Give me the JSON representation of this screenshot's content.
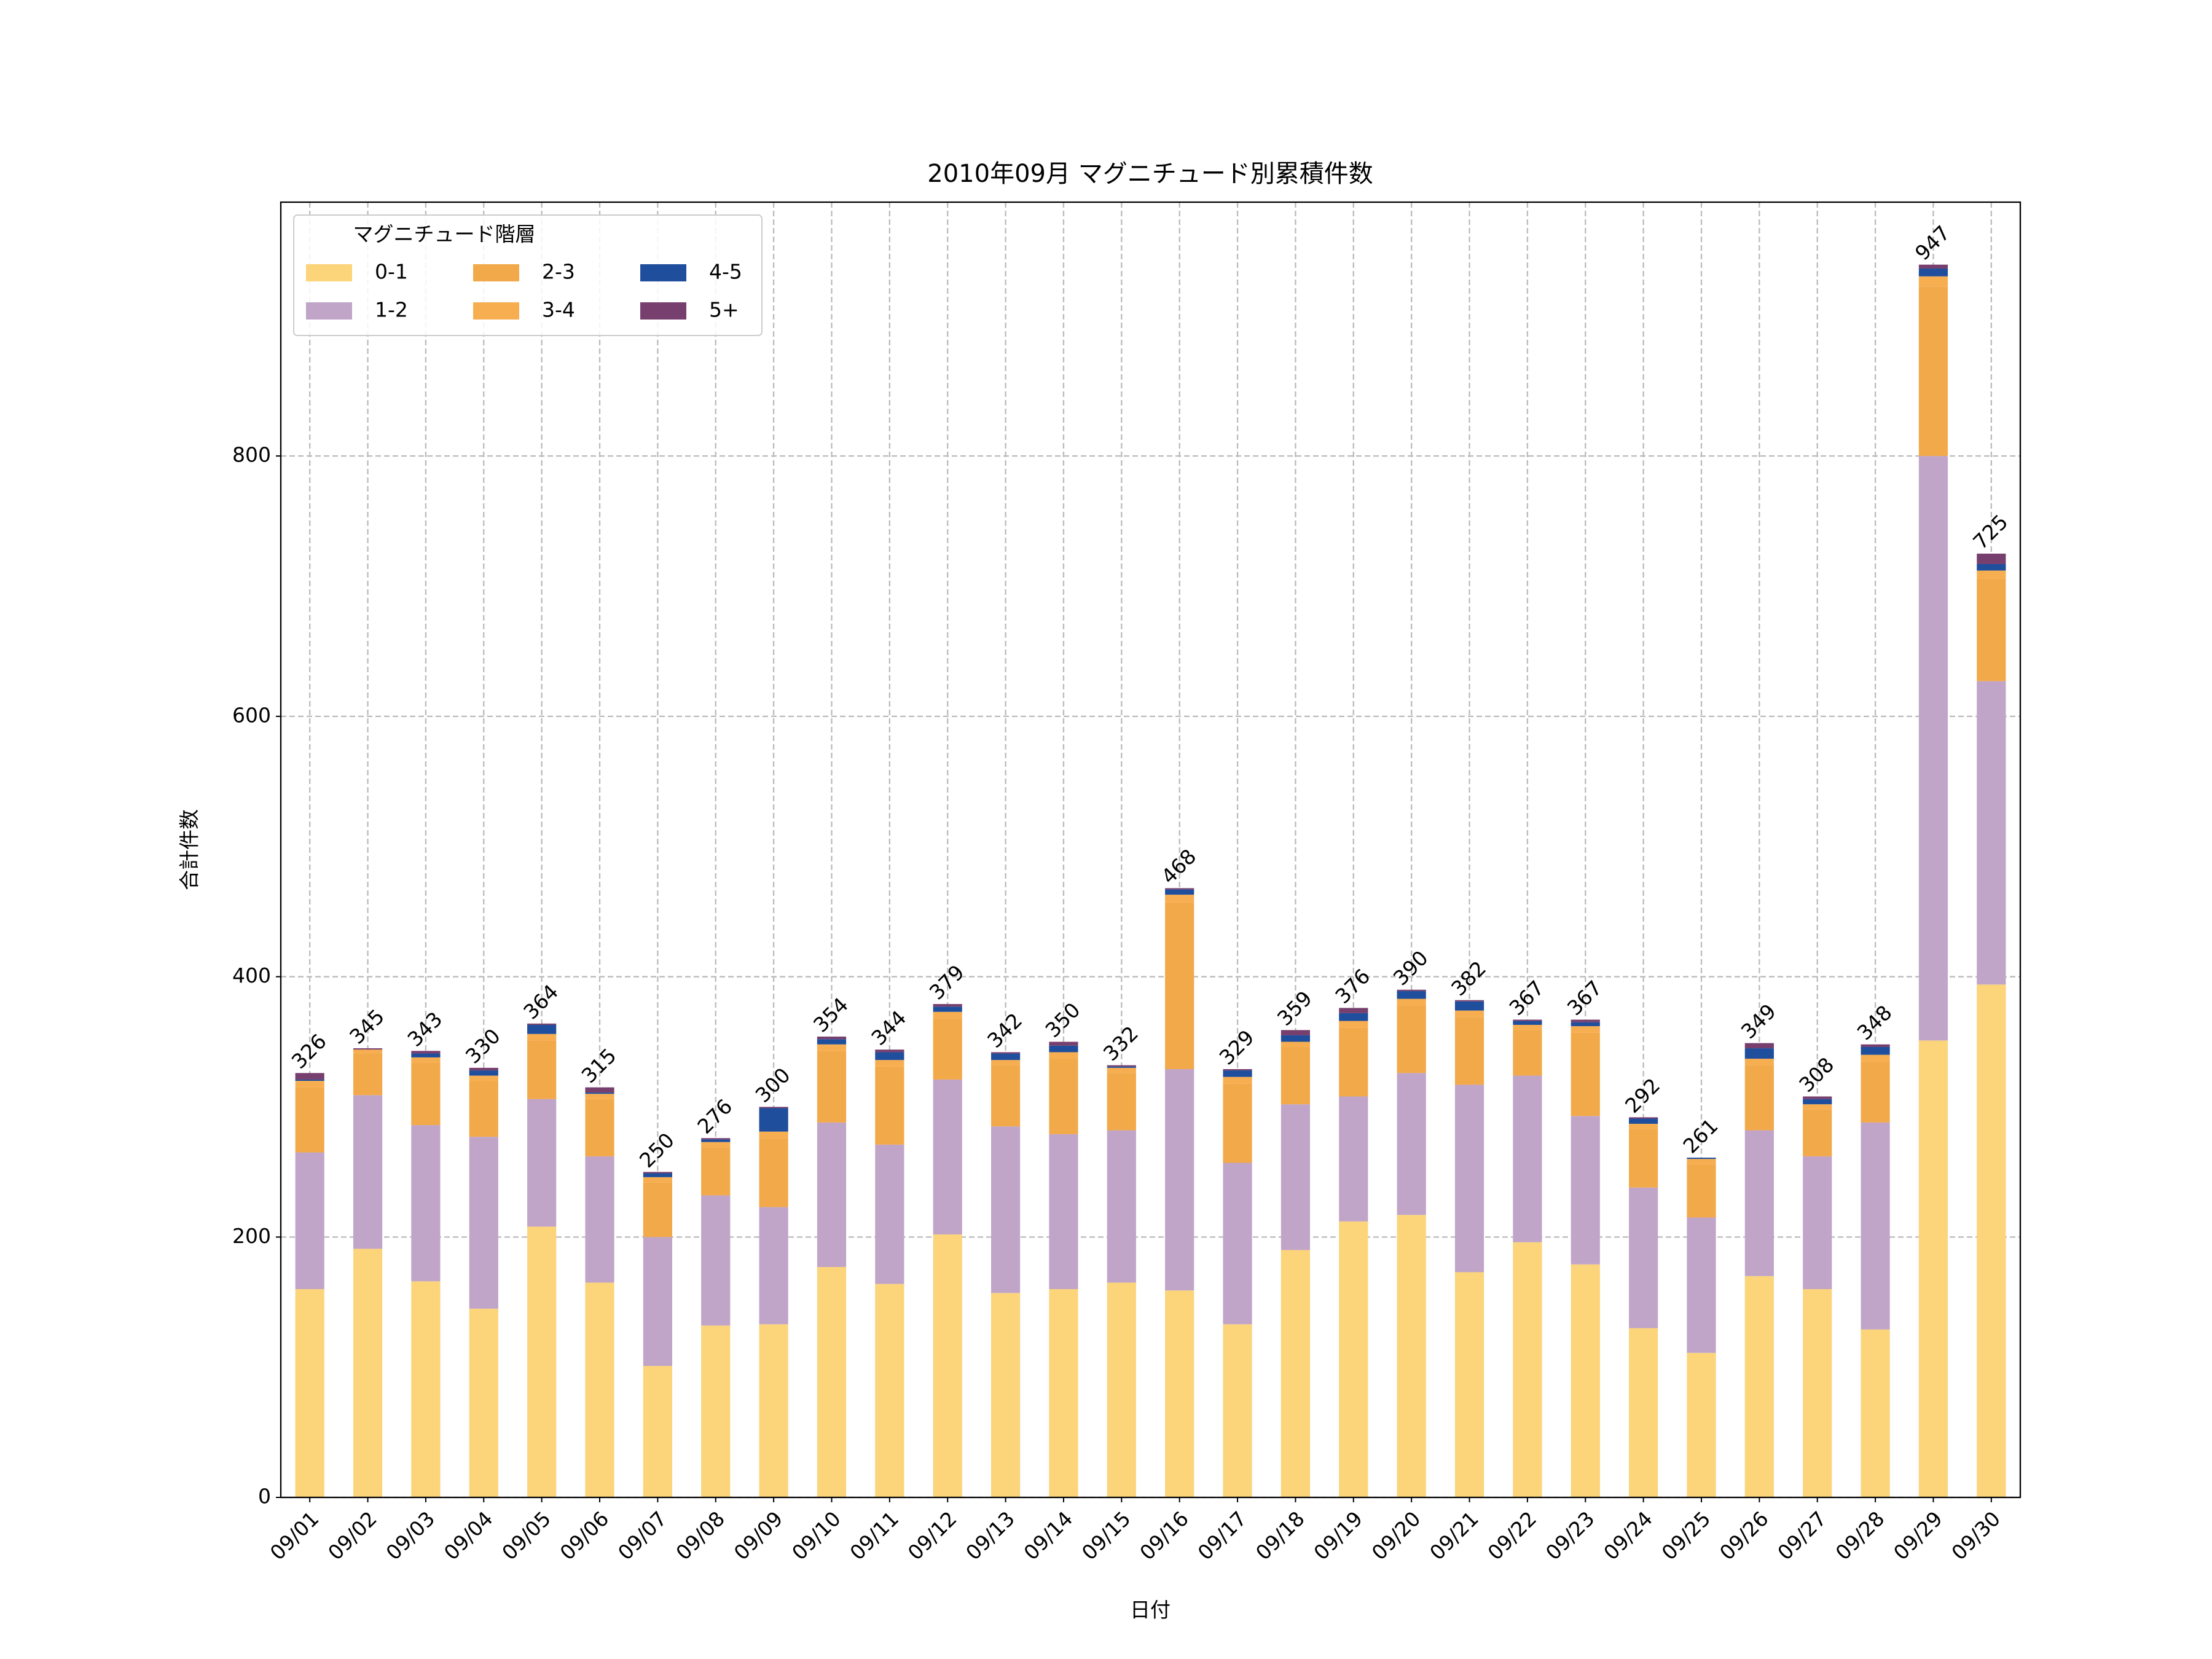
{
  "chart_data": {
    "type": "stacked_bar",
    "title": "2010年09月 マグニチュード別累積件数",
    "xlabel": "日付",
    "ylabel": "合計件数",
    "categories": [
      "09/01",
      "09/02",
      "09/03",
      "09/04",
      "09/05",
      "09/06",
      "09/07",
      "09/08",
      "09/09",
      "09/10",
      "09/11",
      "09/12",
      "09/13",
      "09/14",
      "09/15",
      "09/16",
      "09/17",
      "09/18",
      "09/19",
      "09/20",
      "09/21",
      "09/22",
      "09/23",
      "09/24",
      "09/25",
      "09/26",
      "09/27",
      "09/28",
      "09/29",
      "09/30"
    ],
    "series": [
      {
        "name": "0-1",
        "color": "#fcd47a",
        "values": [
          160,
          191,
          166,
          145,
          208,
          165,
          101,
          132,
          133,
          177,
          164,
          202,
          157,
          160,
          165,
          159,
          133,
          190,
          212,
          217,
          173,
          196,
          179,
          130,
          111,
          170,
          160,
          129,
          351,
          394
        ]
      },
      {
        "name": "1-2",
        "color": "#c0a5c9",
        "values": [
          105,
          118,
          120,
          132,
          98,
          97,
          99,
          100,
          90,
          111,
          107,
          119,
          128,
          119,
          117,
          170,
          124,
          112,
          96,
          109,
          144,
          128,
          114,
          108,
          104,
          112,
          102,
          159,
          449,
          233
        ]
      },
      {
        "name": "2-3",
        "color": "#f2a94a",
        "values": [
          50,
          32,
          48,
          43,
          45,
          44,
          42,
          37,
          53,
          55,
          60,
          47,
          47,
          58,
          44,
          128,
          61,
          44,
          53,
          52,
          52,
          35,
          64,
          45,
          41,
          50,
          36,
          47,
          130,
          79
        ]
      },
      {
        "name": "3-4",
        "color": "#f7ae50",
        "values": [
          5,
          3,
          4,
          4,
          5,
          4,
          4,
          4,
          5,
          5,
          5,
          5,
          4,
          5,
          4,
          6,
          5,
          4,
          5,
          5,
          5,
          4,
          5,
          4,
          4,
          5,
          4,
          5,
          8,
          6
        ]
      },
      {
        "name": "4-5",
        "color": "#1f4e9c",
        "values": [
          1,
          0,
          3,
          4,
          7,
          1,
          3,
          2,
          18,
          4,
          6,
          4,
          5,
          5,
          1,
          4,
          5,
          5,
          6,
          6,
          7,
          3,
          3,
          4,
          1,
          8,
          4,
          6,
          6,
          5
        ]
      },
      {
        "name": "5+",
        "color": "#773f6e",
        "values": [
          5,
          1,
          2,
          2,
          1,
          4,
          1,
          1,
          1,
          2,
          2,
          2,
          1,
          3,
          1,
          1,
          1,
          4,
          4,
          1,
          1,
          1,
          2,
          1,
          0,
          4,
          2,
          2,
          3,
          8
        ]
      }
    ],
    "totals": [
      326,
      345,
      343,
      330,
      364,
      315,
      250,
      276,
      300,
      354,
      344,
      379,
      342,
      350,
      332,
      468,
      329,
      359,
      376,
      390,
      382,
      367,
      367,
      292,
      261,
      349,
      308,
      348,
      947,
      725
    ],
    "legend_title": "マグニチュード階層",
    "legend": "upper left",
    "ylim": [
      0,
      995
    ],
    "yticks": [
      0,
      200,
      400,
      600,
      800
    ],
    "grid": true
  }
}
